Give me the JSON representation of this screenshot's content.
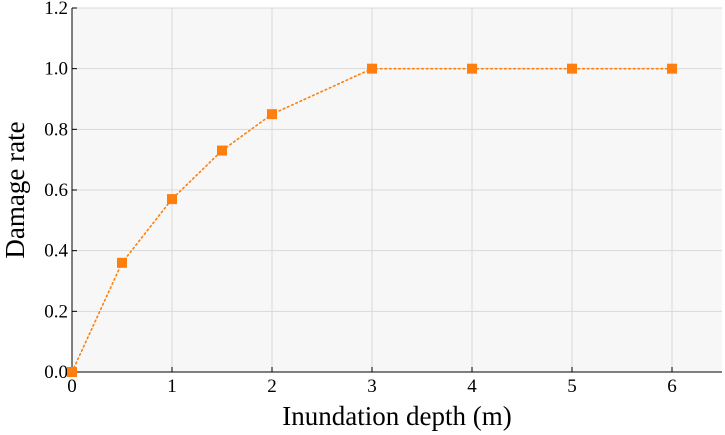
{
  "chart_data": {
    "type": "line",
    "title": "",
    "xlabel": "Inundation depth (m)",
    "ylabel": "Damage rate",
    "xlim": [
      0,
      6.5
    ],
    "ylim": [
      0,
      1.2
    ],
    "xticks": [
      0,
      1,
      2,
      3,
      4,
      5,
      6
    ],
    "xtick_labels": [
      "0",
      "1",
      "2",
      "3",
      "4",
      "5",
      "6"
    ],
    "yticks": [
      0,
      0.2,
      0.4,
      0.6,
      0.8,
      1.0,
      1.2
    ],
    "ytick_labels": [
      "0.0",
      "0.2",
      "0.4",
      "0.6",
      "0.8",
      "1.0",
      "1.2"
    ],
    "grid": true,
    "legend": "none",
    "colors": {
      "series": "#ff7f0e",
      "plot_background": "#f7f7f7",
      "grid": "#d9d9d9"
    },
    "series": [
      {
        "marker": "square",
        "line_style": "dotted",
        "x": [
          0,
          0.5,
          1,
          1.5,
          2,
          3,
          4,
          5,
          6
        ],
        "y": [
          0.0,
          0.36,
          0.57,
          0.73,
          0.85,
          1.0,
          1.0,
          1.0,
          1.0
        ]
      }
    ]
  }
}
